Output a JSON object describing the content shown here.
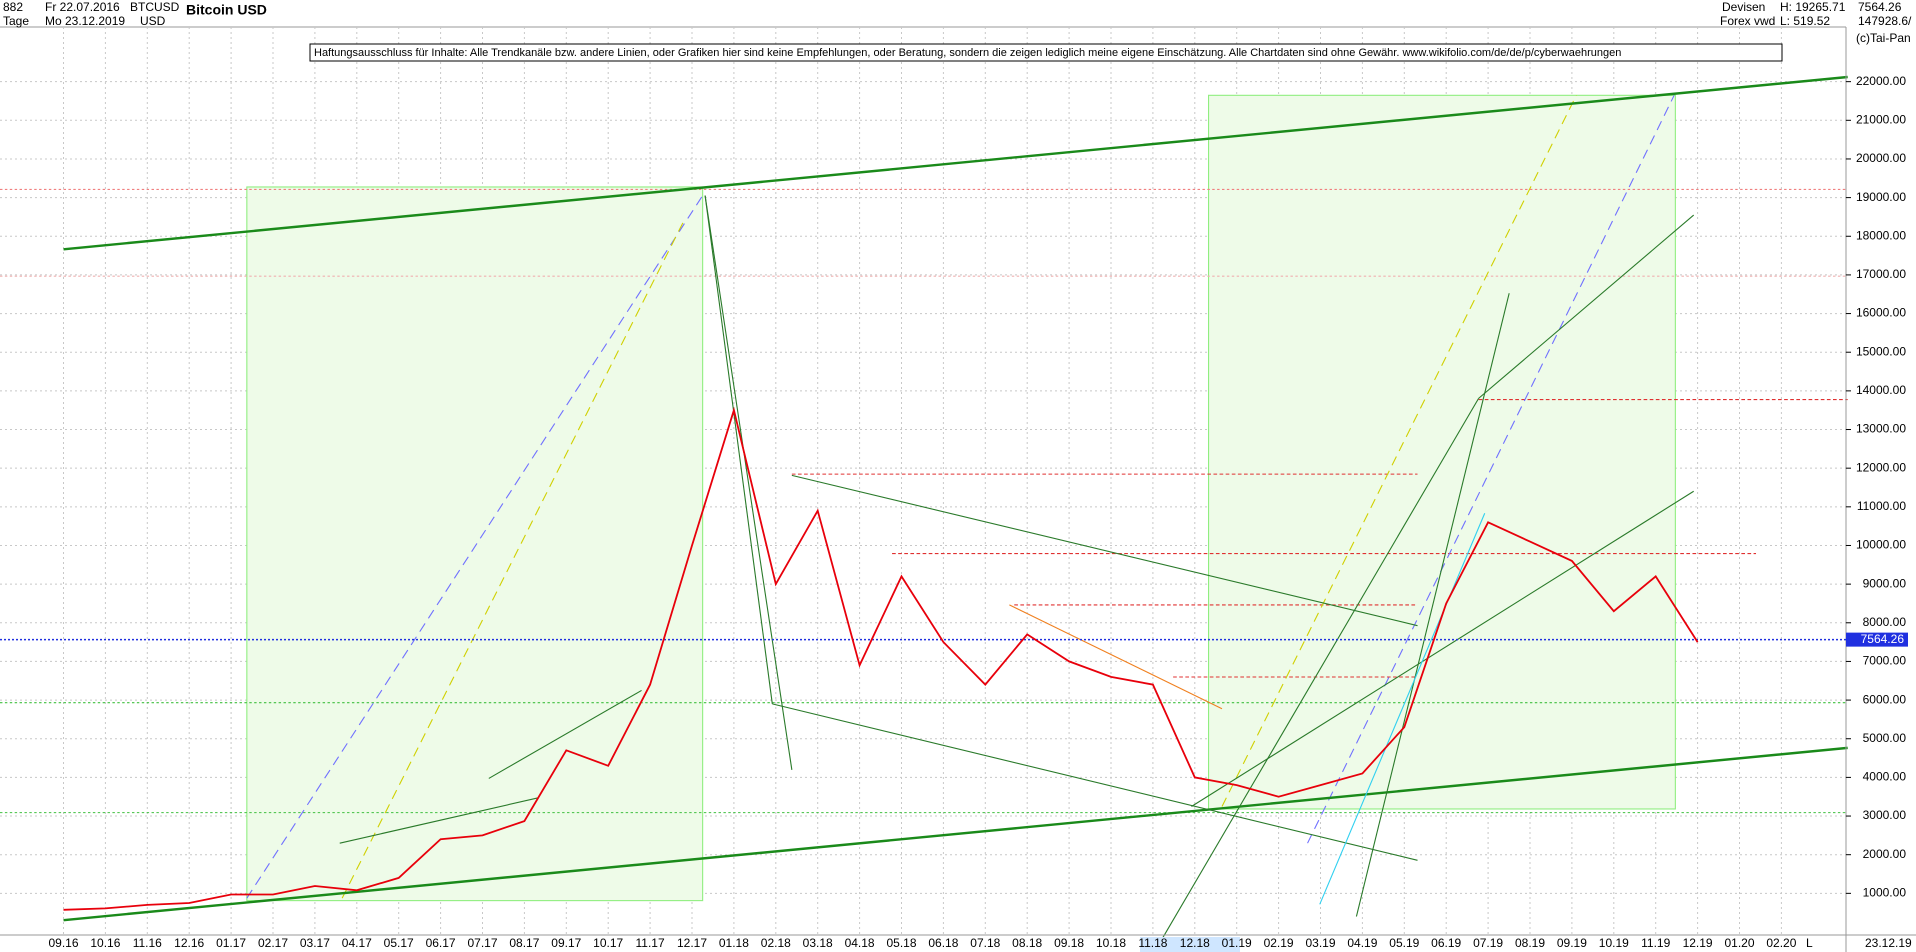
{
  "header": {
    "count": "882",
    "from": "Fr 22.07.2016",
    "period": "Tage",
    "to": "Mo 23.12.2019",
    "symbol": "BTCUSD",
    "currency": "USD",
    "exchange": "Devisen",
    "feed": "Forex vwd",
    "high": "H: 19265.71",
    "low": "L: 519.52",
    "last": "7564.26",
    "volume": "147928.6/",
    "copyright": "(c)Tai-Pan"
  },
  "disclaimer": "Haftungsausschluss für Inhalte: Alle Trendkanäle bzw. andere Linien, oder Grafiken hier sind keine Empfehlungen, oder Beratung, sondern die zeigen lediglich meine eigene Einschätzung. Alle Chartdaten sind ohne Gewähr.  www.wikifolio.com/de/de/p/cyberwaehrungen",
  "footer": {
    "date": "23.12.19",
    "scale": "L"
  },
  "chart_data": {
    "type": "line",
    "title": "Bitcoin USD",
    "categories": [
      "09.16",
      "10.16",
      "11.16",
      "12.16",
      "01.17",
      "02.17",
      "03.17",
      "04.17",
      "05.17",
      "06.17",
      "07.17",
      "08.17",
      "09.17",
      "10.17",
      "11.17",
      "12.17",
      "01.18",
      "02.18",
      "03.18",
      "04.18",
      "05.18",
      "06.18",
      "07.18",
      "08.18",
      "09.18",
      "10.18",
      "11.18",
      "12.18",
      "01.19",
      "02.19",
      "03.19",
      "04.19",
      "05.19",
      "06.19",
      "07.19",
      "08.19",
      "09.19",
      "10.19",
      "11.19",
      "12.19",
      "01.20",
      "02.20"
    ],
    "series": [
      {
        "name": "Bitcoin USD",
        "color": "#e8000b",
        "values": [
          575,
          610,
          700,
          750,
          970,
          970,
          1190,
          1080,
          1400,
          2400,
          2500,
          2870,
          4700,
          4300,
          6400,
          10000,
          13500,
          9000,
          10900,
          6900,
          9200,
          7500,
          6400,
          7700,
          7000,
          6600,
          6400,
          4000,
          3800,
          3500,
          3800,
          4100,
          5300,
          8500,
          10600,
          10100,
          9600,
          8300,
          9200,
          7500,
          null,
          null
        ]
      }
    ],
    "reference_line": 7564.26,
    "ylim": [
      0,
      23000
    ],
    "yticks": [
      {
        "value": 1000,
        "label": "1000.00"
      },
      {
        "value": 2000,
        "label": "2000.00"
      },
      {
        "value": 3000,
        "label": "3000.00"
      },
      {
        "value": 4000,
        "label": "4000.00"
      },
      {
        "value": 5000,
        "label": "5000.00"
      },
      {
        "value": 6000,
        "label": "6000.00"
      },
      {
        "value": 7000,
        "label": "7000.00"
      },
      {
        "value": 8000,
        "label": "8000.00"
      },
      {
        "value": 9000,
        "label": "9000.00"
      },
      {
        "value": 10000,
        "label": "10000.00"
      },
      {
        "value": 11000,
        "label": "11000.00"
      },
      {
        "value": 12000,
        "label": "12000.00"
      },
      {
        "value": 13000,
        "label": "13000.00"
      },
      {
        "value": 14000,
        "label": "14000.00"
      },
      {
        "value": 15000,
        "label": "15000.00"
      },
      {
        "value": 16000,
        "label": "16000.00"
      },
      {
        "value": 17000,
        "label": "17000.00"
      },
      {
        "value": 18000,
        "label": "18000.00"
      },
      {
        "value": 19000,
        "label": "19000.00"
      },
      {
        "value": 20000,
        "label": "20000.00"
      },
      {
        "value": 21000,
        "label": "21000.00"
      },
      {
        "value": 22000,
        "label": "22000.00"
      }
    ],
    "grid": true
  }
}
